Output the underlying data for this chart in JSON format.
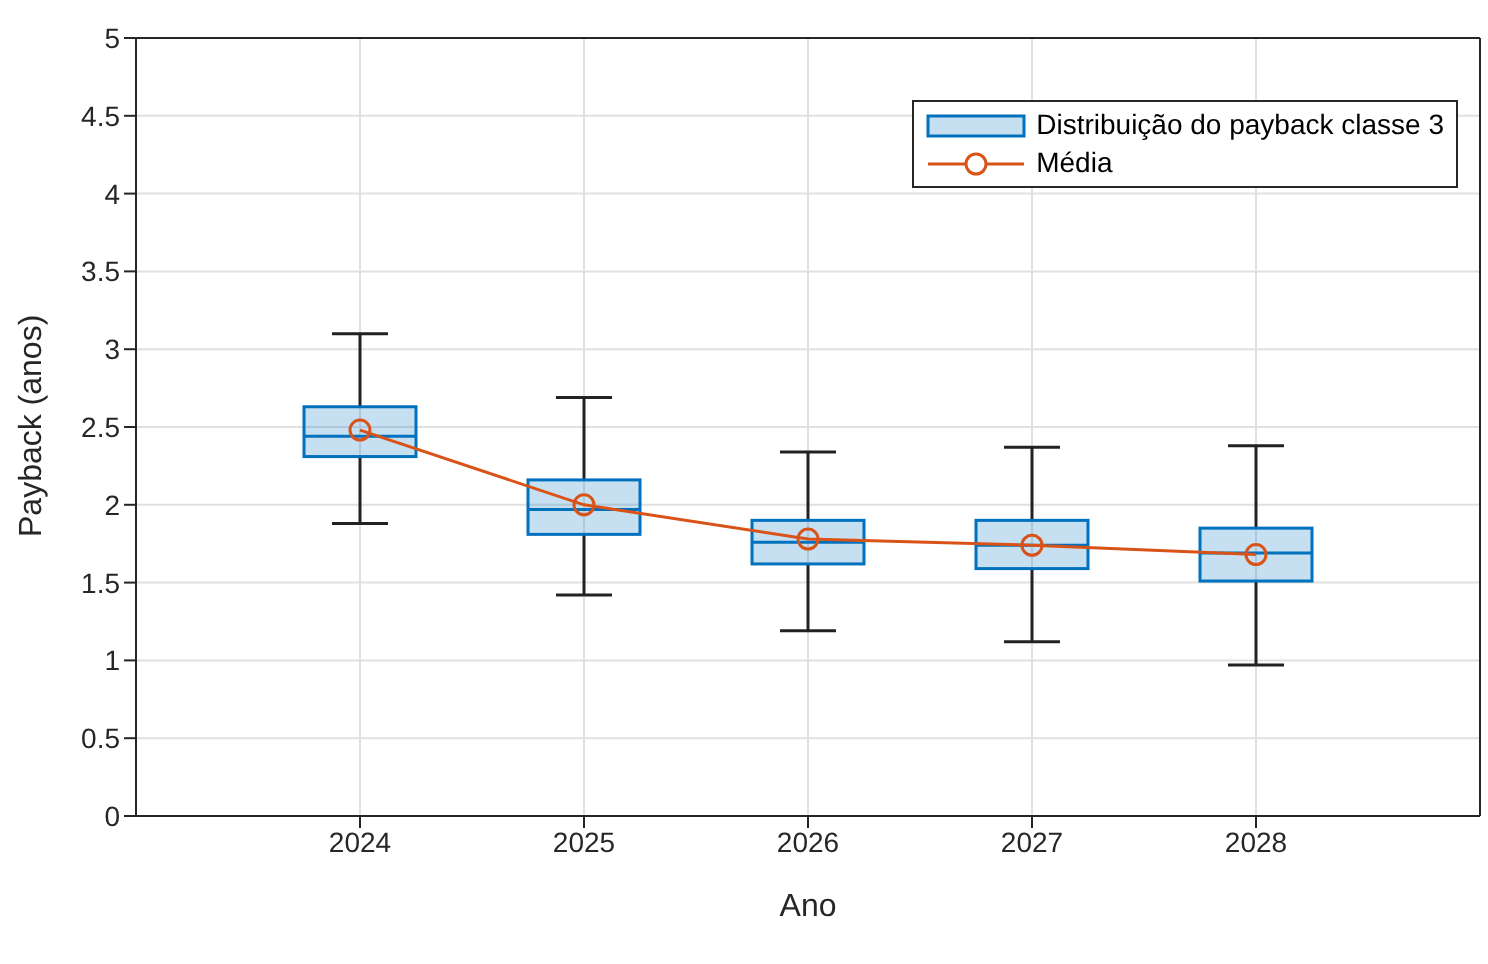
{
  "chart_data": {
    "type": "box",
    "xlabel": "Ano",
    "ylabel": "Payback (anos)",
    "categories": [
      "2024",
      "2025",
      "2026",
      "2027",
      "2028"
    ],
    "ylim": [
      0,
      5
    ],
    "yticks": [
      0,
      0.5,
      1,
      1.5,
      2,
      2.5,
      3,
      3.5,
      4,
      4.5,
      5
    ],
    "grid": true,
    "legend": "top right",
    "marker": "circle",
    "series": [
      {
        "name": "Distribuição do payback classe 3",
        "color": "#0072bd",
        "boxes": [
          {
            "low": 1.88,
            "q1": 2.31,
            "median": 2.44,
            "q3": 2.63,
            "high": 3.1
          },
          {
            "low": 1.42,
            "q1": 1.81,
            "median": 1.97,
            "q3": 2.16,
            "high": 2.69
          },
          {
            "low": 1.19,
            "q1": 1.62,
            "median": 1.76,
            "q3": 1.9,
            "high": 2.34
          },
          {
            "low": 1.12,
            "q1": 1.59,
            "median": 1.74,
            "q3": 1.9,
            "high": 2.37
          },
          {
            "low": 0.97,
            "q1": 1.51,
            "median": 1.69,
            "q3": 1.85,
            "high": 2.38
          }
        ]
      },
      {
        "name": "Média",
        "type": "line",
        "color": "#d95319",
        "values": [
          2.48,
          2.0,
          1.78,
          1.74,
          1.68
        ]
      }
    ]
  }
}
